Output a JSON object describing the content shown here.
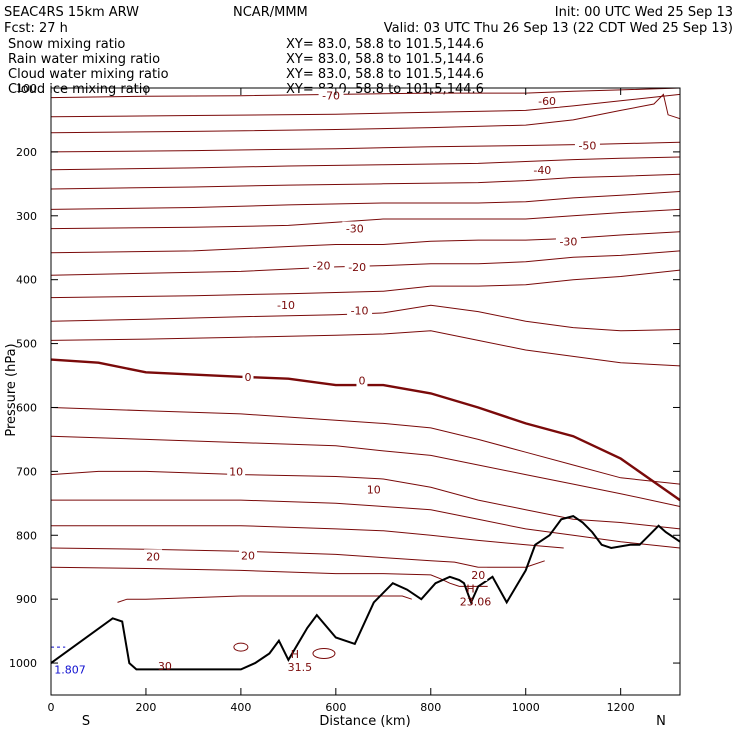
{
  "header": {
    "model": "SEAC4RS 15km ARW",
    "org": "NCAR/MMM",
    "init": "Init: 00 UTC Wed 25 Sep 13",
    "fcst": "Fcst:   27 h",
    "valid": "Valid: 03 UTC Thu 26 Sep 13 (22 CDT Wed 25 Sep 13)"
  },
  "legend": [
    {
      "name": "Snow mixing ratio",
      "xy": "XY=  83.0, 58.8 to 101.5,144.6",
      "color": "#000000"
    },
    {
      "name": "Rain water mixing ratio",
      "xy": "XY=  83.0, 58.8 to 101.5,144.6",
      "color": "#e00000"
    },
    {
      "name": "Cloud water mixing ratio",
      "xy": "XY=  83.0, 58.8 to 101.5,144.6",
      "color": "#1010d0"
    },
    {
      "name": "Cloud ice mixing ratio",
      "xy": "XY=  83.0, 58.8 to 101.5,144.6",
      "color": "#000000"
    }
  ],
  "colors": {
    "contour": "#7a0a0a",
    "terrain": "#000000",
    "blue_label": "#1010d0"
  },
  "chart_data": {
    "type": "line",
    "xlabel": "Distance (km)",
    "ylabel": "Pressure (hPa)",
    "xlim": [
      0,
      1325
    ],
    "ylim": [
      1050,
      100
    ],
    "x_ticks": [
      0,
      200,
      400,
      600,
      800,
      1000,
      1200
    ],
    "y_ticks": [
      100,
      200,
      300,
      400,
      500,
      600,
      700,
      800,
      900,
      1000
    ],
    "x_end_labels": {
      "left": "S",
      "right": "N"
    },
    "grid": false,
    "terrain": {
      "x": [
        0,
        130,
        150,
        165,
        180,
        200,
        300,
        400,
        430,
        460,
        480,
        500,
        540,
        560,
        600,
        640,
        680,
        720,
        750,
        780,
        810,
        840,
        860,
        870,
        885,
        900,
        930,
        960,
        980,
        1000,
        1020,
        1050,
        1075,
        1100,
        1120,
        1140,
        1160,
        1180,
        1220,
        1240,
        1260,
        1280,
        1295,
        1325
      ],
      "p": [
        1000,
        930,
        935,
        1000,
        1010,
        1010,
        1010,
        1010,
        1000,
        985,
        965,
        995,
        945,
        925,
        960,
        970,
        905,
        875,
        885,
        900,
        875,
        865,
        870,
        875,
        905,
        880,
        865,
        905,
        880,
        855,
        815,
        800,
        775,
        770,
        780,
        795,
        815,
        820,
        815,
        815,
        800,
        785,
        795,
        810
      ]
    },
    "isotherms": [
      {
        "label": "-70",
        "x": [
          0,
          200,
          400,
          600,
          800,
          1000,
          1100,
          1200,
          1325
        ],
        "p": [
          115,
          113,
          112,
          110,
          108,
          108,
          105,
          103,
          100
        ]
      },
      {
        "label": "-60",
        "x": [
          0,
          300,
          600,
          800,
          1000,
          1100,
          1200,
          1325
        ],
        "p": [
          145,
          143,
          141,
          138,
          135,
          128,
          120,
          110
        ]
      },
      {
        "label": "-60",
        "x": [
          0,
          300,
          600,
          800,
          1000,
          1100,
          1200,
          1270,
          1290,
          1300,
          1325
        ],
        "p": [
          170,
          168,
          165,
          162,
          158,
          150,
          135,
          125,
          110,
          142,
          148
        ]
      },
      {
        "label": "-50",
        "x": [
          0,
          300,
          600,
          800,
          1000,
          1150,
          1325
        ],
        "p": [
          200,
          198,
          195,
          192,
          190,
          188,
          185
        ]
      },
      {
        "label": "-50",
        "x": [
          0,
          300,
          500,
          700,
          900,
          1000,
          1100,
          1200,
          1325
        ],
        "p": [
          228,
          225,
          222,
          220,
          218,
          215,
          212,
          210,
          208
        ]
      },
      {
        "label": "-40",
        "x": [
          0,
          300,
          500,
          700,
          900,
          1000,
          1100,
          1200,
          1325
        ],
        "p": [
          258,
          255,
          252,
          250,
          248,
          245,
          240,
          238,
          235
        ]
      },
      {
        "label": "-30",
        "x": [
          0,
          300,
          500,
          700,
          900,
          1000,
          1100,
          1200,
          1325
        ],
        "p": [
          290,
          287,
          283,
          280,
          280,
          278,
          272,
          268,
          262
        ]
      },
      {
        "label": "-30",
        "x": [
          0,
          300,
          500,
          600,
          700,
          900,
          1000,
          1100,
          1200,
          1325
        ],
        "p": [
          320,
          318,
          315,
          310,
          305,
          305,
          305,
          300,
          295,
          290
        ]
      },
      {
        "label": "-20",
        "x": [
          0,
          300,
          500,
          600,
          700,
          800,
          900,
          1000,
          1100,
          1200,
          1325
        ],
        "p": [
          358,
          355,
          348,
          345,
          345,
          340,
          338,
          338,
          335,
          330,
          325
        ]
      },
      {
        "label": "-20",
        "x": [
          0,
          200,
          400,
          600,
          700,
          800,
          900,
          1000,
          1100,
          1200,
          1325
        ],
        "p": [
          393,
          390,
          387,
          380,
          378,
          375,
          375,
          372,
          365,
          362,
          355
        ]
      },
      {
        "label": "-10",
        "x": [
          0,
          300,
          500,
          600,
          700,
          800,
          900,
          1000,
          1100,
          1200,
          1325
        ],
        "p": [
          428,
          425,
          422,
          420,
          418,
          410,
          410,
          408,
          400,
          395,
          385
        ]
      },
      {
        "label": "-10",
        "x": [
          0,
          200,
          400,
          600,
          700,
          800,
          900,
          1000,
          1100,
          1200,
          1325
        ],
        "p": [
          465,
          462,
          458,
          455,
          452,
          440,
          450,
          465,
          475,
          480,
          478
        ]
      },
      {
        "label": "",
        "x": [
          0,
          200,
          400,
          600,
          700,
          800,
          900,
          1000,
          1100,
          1200,
          1325
        ],
        "p": [
          495,
          493,
          490,
          487,
          485,
          480,
          495,
          510,
          520,
          530,
          535
        ]
      },
      {
        "label": "0",
        "x": [
          0,
          100,
          200,
          400,
          500,
          600,
          700,
          800,
          900,
          1000,
          1100,
          1200,
          1325
        ],
        "p": [
          525,
          530,
          545,
          552,
          555,
          565,
          565,
          578,
          600,
          625,
          645,
          680,
          745
        ]
      },
      {
        "label": "",
        "x": [
          0,
          200,
          400,
          600,
          700,
          800,
          900,
          1000,
          1100,
          1200,
          1325
        ],
        "p": [
          600,
          605,
          610,
          620,
          625,
          632,
          650,
          670,
          690,
          710,
          720
        ]
      },
      {
        "label": "",
        "x": [
          0,
          200,
          400,
          600,
          700,
          800,
          900,
          1000,
          1100,
          1200,
          1325
        ],
        "p": [
          645,
          650,
          655,
          660,
          668,
          675,
          690,
          705,
          720,
          735,
          755
        ]
      },
      {
        "label": "10",
        "x": [
          0,
          100,
          200,
          400,
          600,
          700,
          800,
          900,
          1000,
          1100,
          1200,
          1325
        ],
        "p": [
          705,
          700,
          700,
          705,
          708,
          712,
          725,
          745,
          760,
          775,
          780,
          790
        ]
      },
      {
        "label": "10",
        "x": [
          0,
          200,
          400,
          600,
          700,
          800,
          900,
          1000,
          1100,
          1200,
          1325
        ],
        "p": [
          745,
          745,
          745,
          750,
          755,
          760,
          775,
          790,
          800,
          810,
          820
        ]
      },
      {
        "label": "",
        "x": [
          0,
          200,
          400,
          600,
          700,
          800,
          900,
          1000,
          1080
        ],
        "p": [
          785,
          785,
          785,
          790,
          793,
          800,
          808,
          815,
          820
        ]
      },
      {
        "label": "20",
        "x": [
          0,
          200,
          400,
          600,
          700,
          800,
          850,
          900,
          950,
          1000,
          1040
        ],
        "p": [
          820,
          822,
          825,
          830,
          835,
          840,
          842,
          850,
          850,
          850,
          840
        ]
      },
      {
        "label": "20",
        "x": [
          0,
          200,
          400,
          600,
          700,
          800,
          820,
          840,
          860,
          880,
          900,
          920
        ],
        "p": [
          850,
          852,
          855,
          860,
          860,
          862,
          868,
          875,
          880,
          880,
          880,
          880
        ]
      },
      {
        "label": "",
        "x": [
          140,
          160,
          200,
          400,
          600,
          740,
          760
        ],
        "p": [
          905,
          900,
          900,
          895,
          895,
          895,
          900
        ]
      }
    ],
    "inline_labels": [
      {
        "text": "-70",
        "x": 590,
        "p": 112
      },
      {
        "text": "-60",
        "x": 1045,
        "p": 120
      },
      {
        "text": "-50",
        "x": 1130,
        "p": 190
      },
      {
        "text": "-40",
        "x": 1035,
        "p": 228
      },
      {
        "text": "-30",
        "x": 640,
        "p": 320
      },
      {
        "text": "-30",
        "x": 1090,
        "p": 340
      },
      {
        "text": "-20",
        "x": 570,
        "p": 378
      },
      {
        "text": "-20",
        "x": 645,
        "p": 380
      },
      {
        "text": "-10",
        "x": 495,
        "p": 440
      },
      {
        "text": "-10",
        "x": 650,
        "p": 448
      },
      {
        "text": "0",
        "x": 415,
        "p": 552
      },
      {
        "text": "0",
        "x": 655,
        "p": 558
      },
      {
        "text": "10",
        "x": 390,
        "p": 700
      },
      {
        "text": "10",
        "x": 680,
        "p": 728
      },
      {
        "text": "20",
        "x": 215,
        "p": 833
      },
      {
        "text": "20",
        "x": 415,
        "p": 832
      },
      {
        "text": "20",
        "x": 900,
        "p": 862
      }
    ],
    "maxima": [
      {
        "marker": "H",
        "value": "31.5",
        "x": 520,
        "p": 995
      },
      {
        "marker": "H",
        "value": "23.06",
        "x": 890,
        "p": 893
      }
    ],
    "other_labels": [
      {
        "text": "30",
        "x": 240,
        "p": 1005
      },
      {
        "text": "1.807",
        "x": 40,
        "p": 1010
      }
    ]
  }
}
